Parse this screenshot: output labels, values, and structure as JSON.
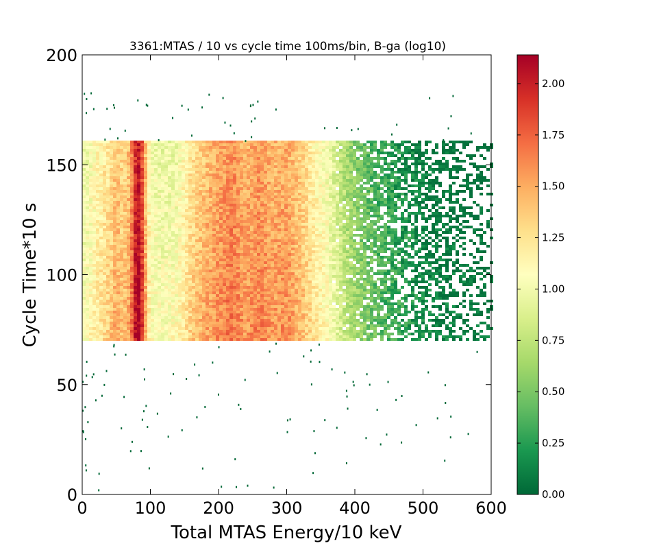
{
  "chart_data": {
    "type": "heatmap",
    "title": "3361:MTAS / 10  vs cycle time 100ms/bin, B-ga (log10)",
    "xlabel": "Total MTAS Energy/10 keV",
    "ylabel": "Cycle Time*10 s",
    "xlim": [
      0,
      600
    ],
    "ylim": [
      0,
      200
    ],
    "xticks": [
      "0",
      "100",
      "200",
      "300",
      "400",
      "500",
      "600"
    ],
    "yticks": [
      "0",
      "50",
      "100",
      "150",
      "200"
    ],
    "colorbar": {
      "range": [
        0.0,
        2.14
      ],
      "ticks": [
        "0.00",
        "0.25",
        "0.50",
        "0.75",
        "1.00",
        "1.25",
        "1.50",
        "1.75",
        "2.00"
      ],
      "colormap": "RdYlGn_r",
      "low_color": "#006837",
      "mid_color": "#ffffbf",
      "high_color": "#a50026"
    },
    "dense_band_cycle_time": [
      70,
      161
    ],
    "energy_profile_log10": {
      "energy": [
        0,
        10,
        20,
        40,
        50,
        60,
        70,
        75,
        80,
        85,
        90,
        95,
        100,
        120,
        140,
        160,
        180,
        200,
        220,
        240,
        260,
        280,
        300,
        320,
        340,
        360,
        380,
        400,
        420,
        450,
        480,
        500,
        530,
        560,
        600
      ],
      "value": [
        1.0,
        1.05,
        1.15,
        1.3,
        1.45,
        1.35,
        1.5,
        1.8,
        2.1,
        2.05,
        1.7,
        1.3,
        1.05,
        1.0,
        1.05,
        1.3,
        1.45,
        1.55,
        1.65,
        1.5,
        1.6,
        1.5,
        1.55,
        1.4,
        1.2,
        1.05,
        0.8,
        0.6,
        0.45,
        0.3,
        0.2,
        0.12,
        0.05,
        0.02,
        0.0
      ]
    }
  }
}
